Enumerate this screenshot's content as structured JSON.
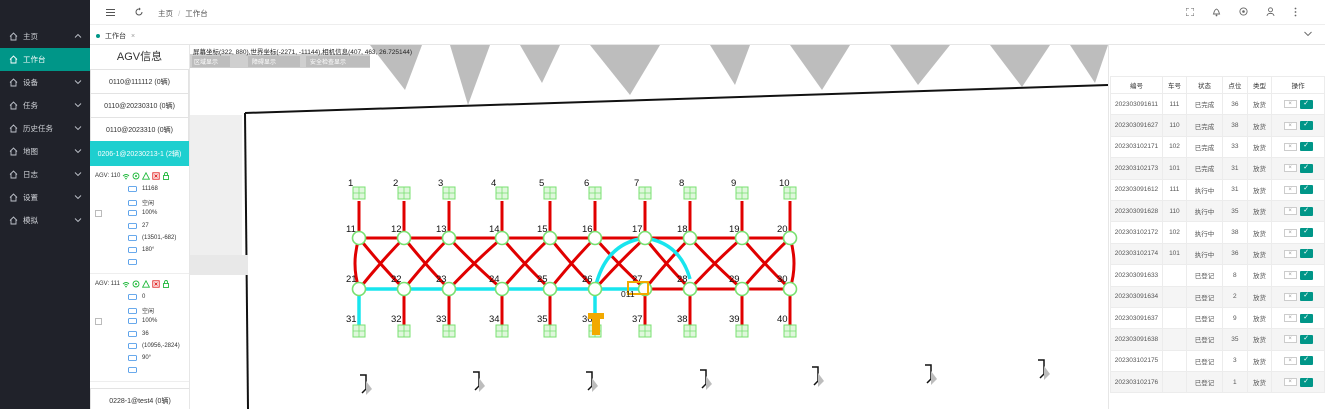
{
  "sidebar": {
    "items": [
      {
        "label": "主页",
        "active": false
      },
      {
        "label": "工作台",
        "active": true
      },
      {
        "label": "设备",
        "active": false
      },
      {
        "label": "任务",
        "active": false
      },
      {
        "label": "历史任务",
        "active": false
      },
      {
        "label": "地图",
        "active": false
      },
      {
        "label": "日志",
        "active": false
      },
      {
        "label": "设置",
        "active": false
      },
      {
        "label": "模拟",
        "active": false
      }
    ]
  },
  "breadcrumb": {
    "home": "主页",
    "separator": "/",
    "current": "工作台"
  },
  "tab": {
    "label": "工作台"
  },
  "agv_panel": {
    "title": "AGV信息",
    "groups": [
      "0110@111112   (0辆)",
      "0110@20230310   (0辆)",
      "0110@2023310   (0辆)",
      "0206-1@20230213-1   (2辆)",
      "0228-1@test4   (0辆)"
    ],
    "agvs": [
      {
        "head": "AGV:  110",
        "rows": [
          "11168",
          "空闲",
          "100%",
          "27",
          "(13501,-682)",
          "180°",
          ""
        ]
      },
      {
        "head": "AGV:  111",
        "rows": [
          "0",
          "空闲",
          "100%",
          "36",
          "(10956,-2824)",
          "90°",
          ""
        ]
      }
    ]
  },
  "map": {
    "info": "屏幕坐标(322, 880),世界坐标(-2271, -11144),相机信息(407, 463, 26.725144)",
    "buttons": [
      "区域显示",
      "障碍显示",
      "安全检查显示"
    ],
    "top_labels": [
      "1",
      "2",
      "3",
      "4",
      "5",
      "6",
      "7",
      "8",
      "9",
      "10"
    ],
    "row1_labels": [
      "11",
      "12",
      "13",
      "14",
      "15",
      "16",
      "17",
      "18",
      "19",
      "20"
    ],
    "row2_labels": [
      "21",
      "22",
      "23",
      "24",
      "25",
      "26",
      "27",
      "28",
      "29",
      "30"
    ],
    "bottom_labels": [
      "31",
      "32",
      "33",
      "34",
      "35",
      "36",
      "37",
      "38",
      "39",
      "40"
    ],
    "agv_tag": "011",
    "colors": {
      "route": "#e00000",
      "path": "#18e5ee",
      "node": "#78e070",
      "agv": "#f2a900"
    }
  },
  "table": {
    "headers": [
      "编号",
      "车号",
      "状态",
      "点位",
      "类型",
      "操作"
    ],
    "rows": [
      [
        "202303091611",
        "111",
        "已完成",
        "36",
        "放货"
      ],
      [
        "202303091627",
        "110",
        "已完成",
        "38",
        "放货"
      ],
      [
        "202303102171",
        "102",
        "已完成",
        "33",
        "放货"
      ],
      [
        "202303102173",
        "101",
        "已完成",
        "31",
        "放货"
      ],
      [
        "202303091612",
        "111",
        "执行中",
        "31",
        "放货"
      ],
      [
        "202303091628",
        "110",
        "执行中",
        "35",
        "放货"
      ],
      [
        "202303102172",
        "102",
        "执行中",
        "38",
        "放货"
      ],
      [
        "202303102174",
        "101",
        "执行中",
        "36",
        "放货"
      ],
      [
        "202303091633",
        "",
        "已登记",
        "8",
        "放货"
      ],
      [
        "202303091634",
        "",
        "已登记",
        "2",
        "放货"
      ],
      [
        "202303091637",
        "",
        "已登记",
        "9",
        "放货"
      ],
      [
        "202303091638",
        "",
        "已登记",
        "35",
        "放货"
      ],
      [
        "202303102175",
        "",
        "已登记",
        "3",
        "放货"
      ],
      [
        "202303102176",
        "",
        "已登记",
        "1",
        "放货"
      ]
    ],
    "cancel_label": "×",
    "confirm_label": "✓"
  }
}
